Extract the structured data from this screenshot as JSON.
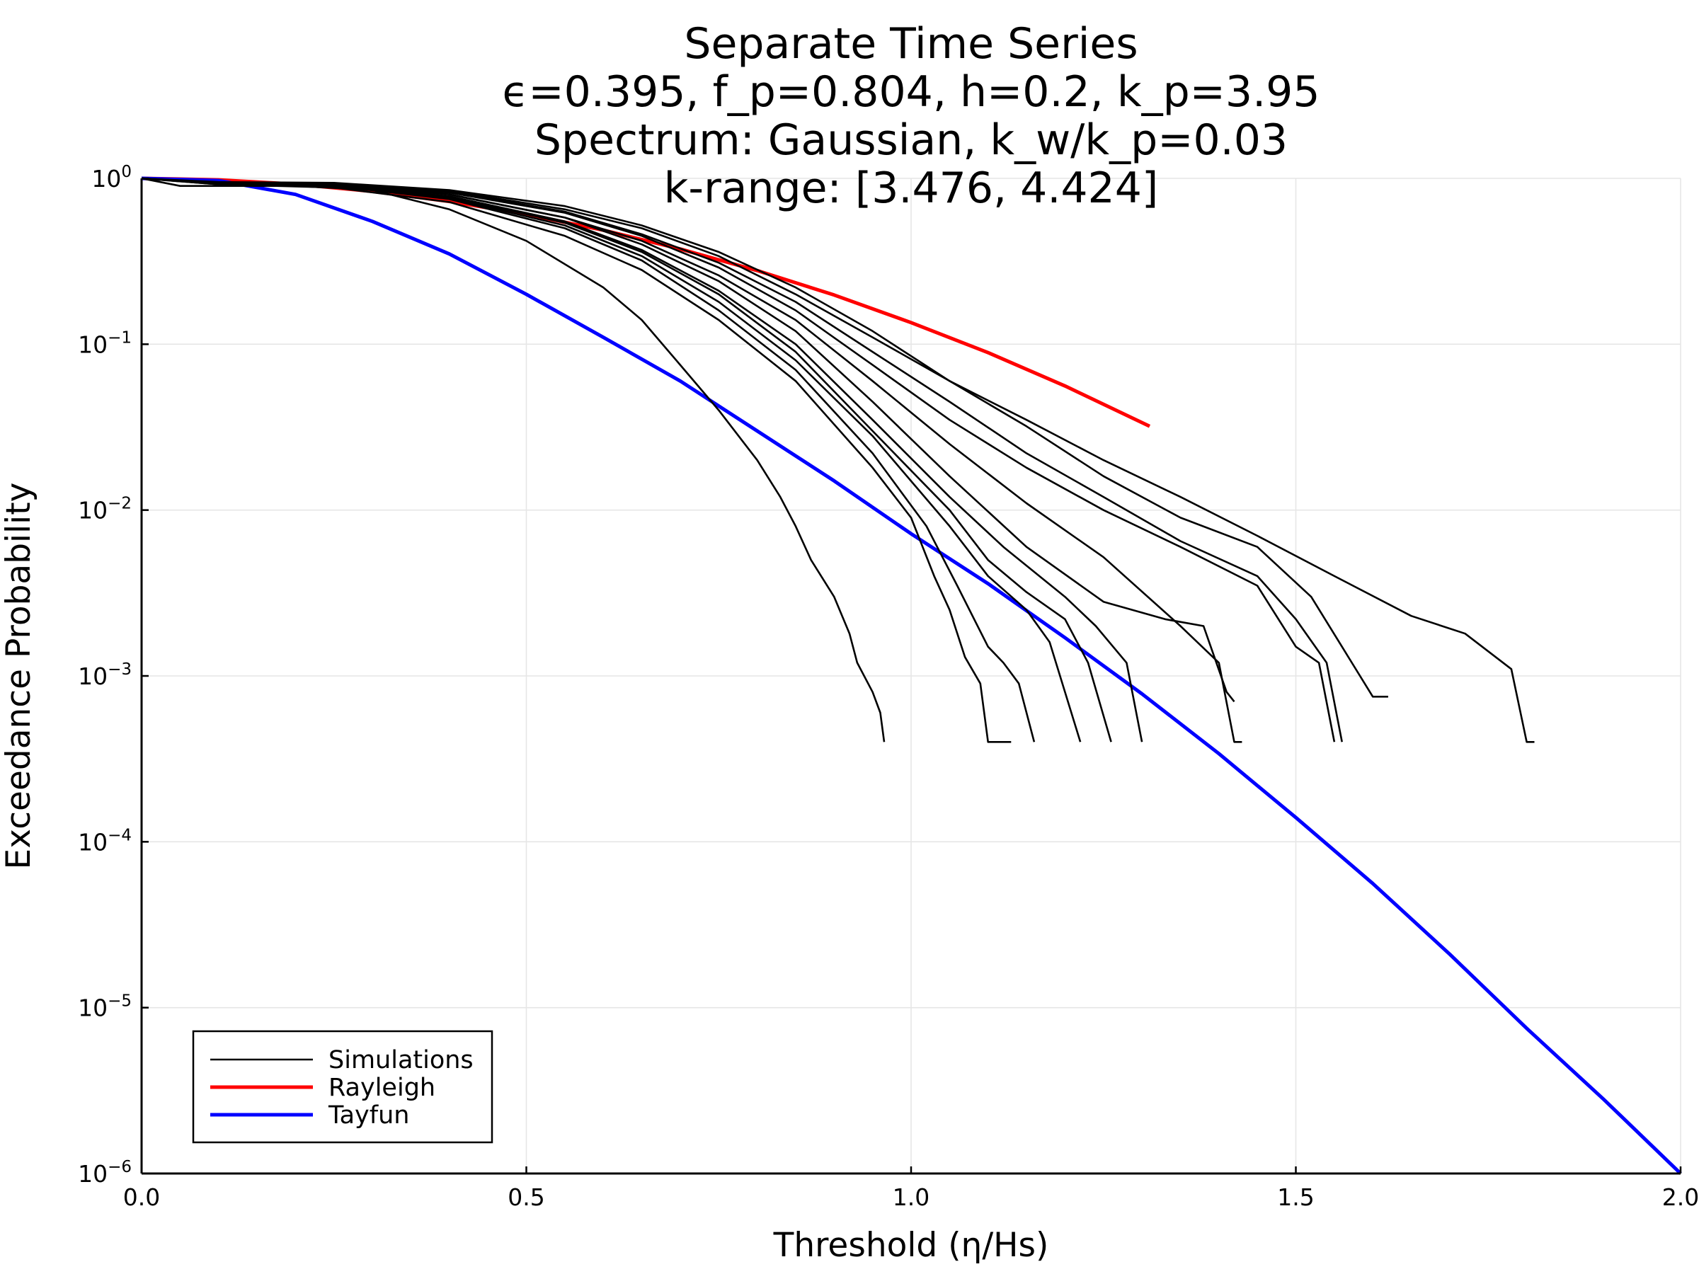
{
  "chart_data": {
    "type": "line",
    "title": [
      "Separate Time Series",
      "ϵ=0.395, f_p=0.804, h=0.2, k_p=3.95",
      "Spectrum: Gaussian, k_w/k_p=0.03",
      "k-range: [3.476, 4.424]"
    ],
    "xlabel": "Threshold (η/Hs)",
    "ylabel": "Exceedance Probability",
    "xlim": [
      0,
      2
    ],
    "ylim": [
      1e-06,
      1
    ],
    "y_scale": "log",
    "x_ticks": [
      0,
      0.5,
      1,
      1.5,
      2
    ],
    "x_tick_labels": [
      "0.0",
      "0.5",
      "1.0",
      "1.5",
      "2.0"
    ],
    "y_ticks": [
      {
        "value": 1,
        "base": "10",
        "exp": "0"
      },
      {
        "value": 0.1,
        "base": "10",
        "exp": "−1"
      },
      {
        "value": 0.01,
        "base": "10",
        "exp": "−2"
      },
      {
        "value": 0.001,
        "base": "10",
        "exp": "−3"
      },
      {
        "value": 0.0001,
        "base": "10",
        "exp": "−4"
      },
      {
        "value": 1e-05,
        "base": "10",
        "exp": "−5"
      },
      {
        "value": 1e-06,
        "base": "10",
        "exp": "−6"
      }
    ],
    "grid": true,
    "legend_position": "bottom-left",
    "legend": [
      {
        "name": "Simulations",
        "color": "#000000"
      },
      {
        "name": "Rayleigh",
        "color": "#ff0000"
      },
      {
        "name": "Tayfun",
        "color": "#0000ff"
      }
    ],
    "series": [
      {
        "name": "Rayleigh",
        "color": "#ff0000",
        "kind": "theory",
        "x": [
          0,
          0.1,
          0.2,
          0.3,
          0.4,
          0.5,
          0.6,
          0.7,
          0.8,
          0.9,
          1.0,
          1.1,
          1.2,
          1.31
        ],
        "y": [
          1,
          0.98,
          0.923,
          0.835,
          0.726,
          0.607,
          0.487,
          0.375,
          0.278,
          0.198,
          0.135,
          0.089,
          0.056,
          0.032
        ]
      },
      {
        "name": "Tayfun",
        "color": "#0000ff",
        "kind": "theory",
        "x": [
          0,
          0.1,
          0.2,
          0.3,
          0.4,
          0.5,
          0.6,
          0.7,
          0.8,
          0.9,
          1.0,
          1.1,
          1.2,
          1.3,
          1.4,
          1.5,
          1.6,
          1.7,
          1.8,
          1.9,
          2.0
        ],
        "y": [
          1,
          0.97,
          0.8,
          0.55,
          0.35,
          0.2,
          0.11,
          0.06,
          0.03,
          0.015,
          0.0072,
          0.0036,
          0.0017,
          0.00078,
          0.00034,
          0.00014,
          5.6e-05,
          2.1e-05,
          7.5e-06,
          2.8e-06,
          1e-06
        ]
      },
      {
        "name": "",
        "color": "#000000",
        "kind": "simulation",
        "x": [
          0,
          0.05,
          0.2,
          0.3,
          0.4,
          0.5,
          0.6,
          0.65,
          0.7,
          0.75,
          0.8,
          0.83,
          0.85,
          0.87,
          0.9,
          0.92,
          0.93,
          0.95,
          0.96,
          0.965
        ],
        "y": [
          1,
          0.9,
          0.9,
          0.85,
          0.65,
          0.42,
          0.22,
          0.14,
          0.075,
          0.04,
          0.02,
          0.012,
          0.008,
          0.005,
          0.003,
          0.0018,
          0.0012,
          0.0008,
          0.0006,
          0.0004
        ]
      },
      {
        "name": "",
        "color": "#000000",
        "kind": "simulation",
        "x": [
          0,
          0.1,
          0.25,
          0.4,
          0.55,
          0.65,
          0.75,
          0.85,
          0.95,
          1.0,
          1.03,
          1.05,
          1.07,
          1.09,
          1.1,
          1.13
        ],
        "y": [
          1,
          0.92,
          0.88,
          0.72,
          0.45,
          0.28,
          0.14,
          0.06,
          0.018,
          0.009,
          0.004,
          0.0025,
          0.0013,
          0.0009,
          0.0004,
          0.0004
        ]
      },
      {
        "name": "",
        "color": "#000000",
        "kind": "simulation",
        "x": [
          0,
          0.1,
          0.25,
          0.4,
          0.55,
          0.65,
          0.75,
          0.85,
          0.95,
          1.02,
          1.06,
          1.1,
          1.12,
          1.14,
          1.16
        ],
        "y": [
          1,
          0.92,
          0.9,
          0.75,
          0.5,
          0.32,
          0.16,
          0.07,
          0.022,
          0.008,
          0.0035,
          0.0015,
          0.0012,
          0.0009,
          0.0004
        ]
      },
      {
        "name": "",
        "color": "#000000",
        "kind": "simulation",
        "x": [
          0,
          0.1,
          0.25,
          0.4,
          0.55,
          0.65,
          0.75,
          0.85,
          0.95,
          1.05,
          1.1,
          1.15,
          1.18,
          1.2,
          1.22
        ],
        "y": [
          1,
          0.93,
          0.9,
          0.76,
          0.52,
          0.34,
          0.18,
          0.08,
          0.028,
          0.008,
          0.004,
          0.0025,
          0.0016,
          0.0008,
          0.0004
        ]
      },
      {
        "name": "",
        "color": "#000000",
        "kind": "simulation",
        "x": [
          0,
          0.1,
          0.25,
          0.4,
          0.55,
          0.65,
          0.75,
          0.85,
          0.95,
          1.05,
          1.1,
          1.15,
          1.2,
          1.23,
          1.26
        ],
        "y": [
          1,
          0.93,
          0.91,
          0.77,
          0.54,
          0.36,
          0.2,
          0.09,
          0.03,
          0.01,
          0.005,
          0.0032,
          0.0022,
          0.0012,
          0.0004
        ]
      },
      {
        "name": "",
        "color": "#000000",
        "kind": "simulation",
        "x": [
          0,
          0.1,
          0.25,
          0.4,
          0.55,
          0.65,
          0.75,
          0.85,
          0.95,
          1.05,
          1.12,
          1.2,
          1.24,
          1.28,
          1.3
        ],
        "y": [
          1,
          0.93,
          0.91,
          0.78,
          0.55,
          0.37,
          0.21,
          0.1,
          0.035,
          0.012,
          0.006,
          0.003,
          0.002,
          0.0012,
          0.0004
        ]
      },
      {
        "name": "",
        "color": "#000000",
        "kind": "simulation",
        "x": [
          0,
          0.1,
          0.25,
          0.4,
          0.55,
          0.65,
          0.75,
          0.85,
          0.95,
          1.05,
          1.15,
          1.25,
          1.33,
          1.38,
          1.41,
          1.42
        ],
        "y": [
          1,
          0.93,
          0.92,
          0.8,
          0.58,
          0.4,
          0.24,
          0.12,
          0.045,
          0.016,
          0.006,
          0.0028,
          0.0022,
          0.002,
          0.0008,
          0.0007
        ]
      },
      {
        "name": "",
        "color": "#000000",
        "kind": "simulation",
        "x": [
          0,
          0.1,
          0.25,
          0.4,
          0.55,
          0.65,
          0.75,
          0.85,
          0.95,
          1.05,
          1.15,
          1.25,
          1.35,
          1.4,
          1.42,
          1.43
        ],
        "y": [
          1,
          0.93,
          0.92,
          0.8,
          0.58,
          0.42,
          0.26,
          0.14,
          0.06,
          0.025,
          0.011,
          0.0052,
          0.002,
          0.0012,
          0.0004,
          0.0004
        ]
      },
      {
        "name": "",
        "color": "#000000",
        "kind": "simulation",
        "x": [
          0,
          0.1,
          0.25,
          0.4,
          0.55,
          0.65,
          0.75,
          0.85,
          0.95,
          1.05,
          1.15,
          1.25,
          1.35,
          1.45,
          1.5,
          1.53,
          1.55
        ],
        "y": [
          1,
          0.94,
          0.92,
          0.82,
          0.62,
          0.45,
          0.29,
          0.16,
          0.075,
          0.035,
          0.018,
          0.01,
          0.006,
          0.0035,
          0.0015,
          0.0012,
          0.0004
        ]
      },
      {
        "name": "",
        "color": "#000000",
        "kind": "simulation",
        "x": [
          0,
          0.1,
          0.25,
          0.4,
          0.55,
          0.65,
          0.75,
          0.85,
          0.95,
          1.05,
          1.15,
          1.25,
          1.35,
          1.45,
          1.5,
          1.54,
          1.56
        ],
        "y": [
          1,
          0.94,
          0.93,
          0.83,
          0.63,
          0.46,
          0.31,
          0.18,
          0.09,
          0.045,
          0.022,
          0.012,
          0.0065,
          0.004,
          0.0022,
          0.0012,
          0.0004
        ]
      },
      {
        "name": "",
        "color": "#000000",
        "kind": "simulation",
        "x": [
          0,
          0.1,
          0.25,
          0.4,
          0.55,
          0.65,
          0.75,
          0.85,
          0.95,
          1.05,
          1.15,
          1.25,
          1.35,
          1.45,
          1.52,
          1.56,
          1.6,
          1.62
        ],
        "y": [
          1,
          0.94,
          0.93,
          0.84,
          0.65,
          0.5,
          0.34,
          0.2,
          0.11,
          0.06,
          0.032,
          0.016,
          0.009,
          0.006,
          0.003,
          0.0015,
          0.00075,
          0.00075
        ]
      },
      {
        "name": "",
        "color": "#000000",
        "kind": "simulation",
        "x": [
          0,
          0.1,
          0.25,
          0.4,
          0.55,
          0.65,
          0.75,
          0.85,
          0.95,
          1.05,
          1.15,
          1.25,
          1.35,
          1.45,
          1.55,
          1.65,
          1.72,
          1.78,
          1.8,
          1.81
        ],
        "y": [
          1,
          0.95,
          0.94,
          0.85,
          0.68,
          0.52,
          0.36,
          0.22,
          0.12,
          0.06,
          0.035,
          0.02,
          0.012,
          0.007,
          0.004,
          0.0023,
          0.0018,
          0.0011,
          0.0004,
          0.0004
        ]
      }
    ]
  }
}
